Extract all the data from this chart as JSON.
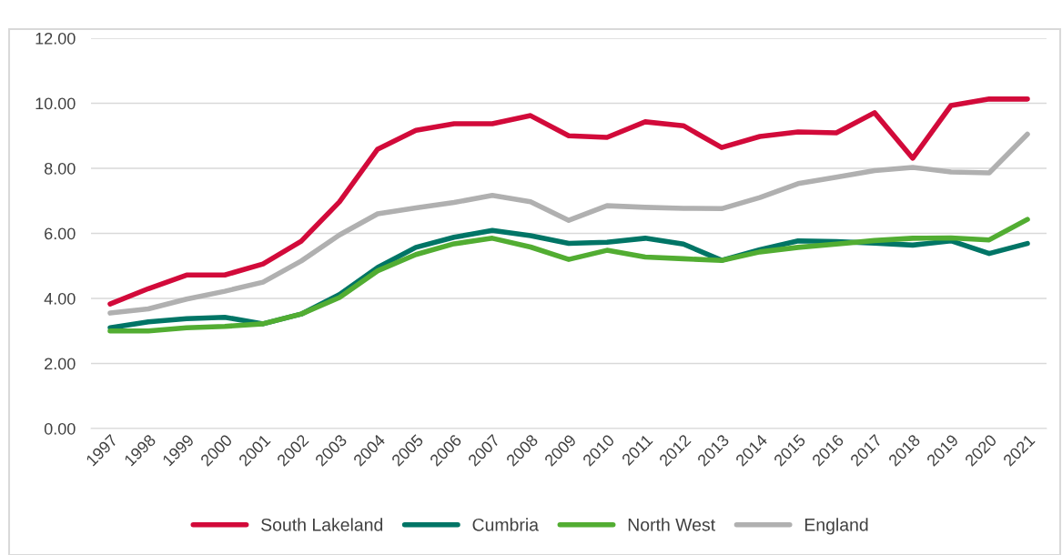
{
  "chart_data": {
    "type": "line",
    "categories": [
      "1997",
      "1998",
      "1999",
      "2000",
      "2001",
      "2002",
      "2003",
      "2004",
      "2005",
      "2006",
      "2007",
      "2008",
      "2009",
      "2010",
      "2011",
      "2012",
      "2013",
      "2014",
      "2015",
      "2016",
      "2017",
      "2018",
      "2019",
      "2020",
      "2021"
    ],
    "series": [
      {
        "name": "South Lakeland",
        "color": "#d20a3a",
        "values": [
          3.83,
          4.3,
          4.72,
          4.72,
          5.06,
          5.76,
          6.97,
          8.59,
          9.17,
          9.37,
          9.37,
          9.62,
          9.0,
          8.95,
          9.43,
          9.31,
          8.64,
          8.98,
          9.12,
          9.09,
          9.71,
          8.31,
          9.93,
          10.13,
          10.13
        ]
      },
      {
        "name": "Cumbria",
        "color": "#007566",
        "values": [
          3.1,
          3.28,
          3.38,
          3.42,
          3.22,
          3.52,
          4.12,
          4.95,
          5.57,
          5.88,
          6.09,
          5.93,
          5.69,
          5.73,
          5.85,
          5.67,
          5.17,
          5.5,
          5.77,
          5.75,
          5.7,
          5.64,
          5.77,
          5.38,
          5.69
        ]
      },
      {
        "name": "North West",
        "color": "#52ad32",
        "values": [
          3.0,
          3.0,
          3.1,
          3.14,
          3.22,
          3.52,
          4.03,
          4.85,
          5.35,
          5.68,
          5.85,
          5.58,
          5.2,
          5.48,
          5.27,
          5.22,
          5.17,
          5.43,
          5.57,
          5.67,
          5.78,
          5.85,
          5.86,
          5.8,
          6.43
        ]
      },
      {
        "name": "England",
        "color": "#b0b0b0",
        "values": [
          3.55,
          3.68,
          3.98,
          4.22,
          4.5,
          5.15,
          5.95,
          6.6,
          6.78,
          6.95,
          7.17,
          6.97,
          6.4,
          6.85,
          6.8,
          6.77,
          6.76,
          7.1,
          7.53,
          7.73,
          7.93,
          8.03,
          7.89,
          7.86,
          9.05
        ]
      }
    ],
    "ylim": [
      0,
      12
    ],
    "yticks": [
      {
        "value": 0,
        "label": "0.00"
      },
      {
        "value": 2,
        "label": "2.00"
      },
      {
        "value": 4,
        "label": "4.00"
      },
      {
        "value": 6,
        "label": "6.00"
      },
      {
        "value": 8,
        "label": "8.00"
      },
      {
        "value": 10,
        "label": "10.00"
      },
      {
        "value": 12,
        "label": "12.00"
      }
    ],
    "grid": "y",
    "legend": "bottom",
    "marker": "none",
    "line_style": "solid"
  }
}
